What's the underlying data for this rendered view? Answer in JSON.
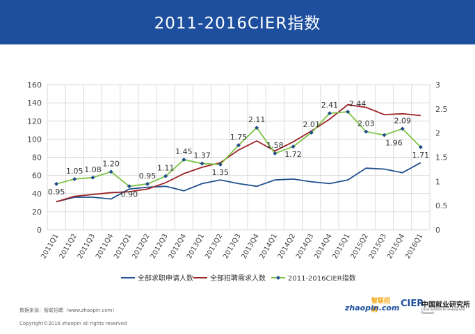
{
  "header": {
    "title": "2011-2016CIER指数"
  },
  "footer": {
    "source": "数据来源：智联招聘（www.zhaopin.com）",
    "copyright": "Copyright©2016 zhaopin all rights reserved"
  },
  "logos": {
    "zhaopin_main": "zhaopin.com",
    "zhaopin_cn": "智联招聘",
    "cier_mark": "CIER",
    "cier_cn": "中国就业研究所",
    "cier_en": "China Institute for Employment Research"
  },
  "chart_data": {
    "type": "line",
    "title": "",
    "categories": [
      "2011Q1",
      "2011Q2",
      "2011Q3",
      "2011Q4",
      "2012Q1",
      "2012Q2",
      "2012Q3",
      "2012Q4",
      "2013Q1",
      "2013Q2",
      "2013Q3",
      "2013Q4",
      "2014Q1",
      "2014Q2",
      "2014Q3",
      "2014Q4",
      "2015Q1",
      "2015Q2",
      "2015Q3",
      "2015Q4",
      "2016Q1"
    ],
    "y_left": {
      "min": 0,
      "max": 160,
      "ticks": [
        0,
        20,
        40,
        60,
        80,
        100,
        120,
        140,
        160
      ]
    },
    "y_right": {
      "min": 0,
      "max": 3,
      "ticks": [
        "0",
        "0.5",
        "1",
        "1.5",
        "2",
        "2.5",
        "3"
      ]
    },
    "grid": true,
    "legend": "bottom",
    "series": [
      {
        "name": "全部求职申请人数",
        "axis": "left",
        "color": "#1f4e8c",
        "values": [
          31,
          36,
          36,
          34,
          45,
          47,
          48,
          43,
          51,
          55,
          51,
          48,
          55,
          56,
          53,
          51,
          55,
          68,
          67,
          63,
          74
        ]
      },
      {
        "name": "全部招聘需求人数",
        "axis": "left",
        "color": "#9b2226",
        "values": [
          31,
          37,
          39,
          41,
          42,
          45,
          52,
          62,
          69,
          74,
          88,
          98,
          87,
          97,
          109,
          122,
          138,
          135,
          127,
          128,
          126
        ]
      },
      {
        "name": "2011-2016CIER指数",
        "axis": "right",
        "color": "#7cc243",
        "marker_color": "#1f4e8c",
        "values": [
          0.95,
          1.05,
          1.08,
          1.2,
          0.9,
          0.95,
          1.11,
          1.45,
          1.37,
          1.35,
          1.75,
          2.11,
          1.58,
          1.72,
          2.01,
          2.41,
          2.44,
          2.03,
          1.96,
          2.09,
          1.71
        ],
        "labels": [
          "0.95",
          "1.05",
          "1.08",
          "1.20",
          "0.90",
          "0.95",
          "1.11",
          "1.45",
          "1.37",
          "1.35",
          "1.75",
          "2.11",
          "1.58",
          "1.72",
          "2.01",
          "2.41",
          "2.44",
          "2.03",
          "1.96",
          "2.09",
          "1.71"
        ]
      }
    ]
  }
}
